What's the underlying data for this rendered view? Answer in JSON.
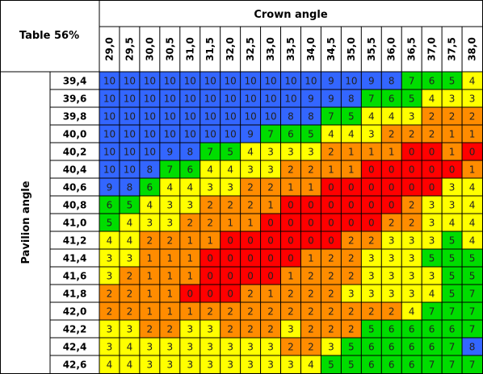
{
  "chart_data": {
    "type": "heatmap",
    "corner_label": "Table 56%",
    "xlabel": "Crown angle",
    "ylabel": "Pavilion angle",
    "x": [
      "29,0",
      "29,5",
      "30,0",
      "30,5",
      "31,0",
      "31,5",
      "32,0",
      "32,5",
      "33,0",
      "33,5",
      "34,0",
      "34,5",
      "35,0",
      "35,5",
      "36,0",
      "36,5",
      "37,0",
      "37,5",
      "38,0"
    ],
    "y": [
      "39,4",
      "39,6",
      "39,8",
      "40,0",
      "40,2",
      "40,4",
      "40,6",
      "40,8",
      "41,0",
      "41,2",
      "41,4",
      "41,6",
      "41,8",
      "42,0",
      "42,2",
      "42,4",
      "42,6"
    ],
    "values": [
      [
        10,
        10,
        10,
        10,
        10,
        10,
        10,
        10,
        10,
        10,
        10,
        9,
        10,
        9,
        8,
        7,
        6,
        5,
        4
      ],
      [
        10,
        10,
        10,
        10,
        10,
        10,
        10,
        10,
        10,
        10,
        9,
        9,
        8,
        7,
        6,
        5,
        4,
        3,
        3
      ],
      [
        10,
        10,
        10,
        10,
        10,
        10,
        10,
        10,
        10,
        8,
        8,
        7,
        5,
        4,
        4,
        3,
        2,
        2,
        2
      ],
      [
        10,
        10,
        10,
        10,
        10,
        10,
        10,
        9,
        7,
        6,
        5,
        4,
        4,
        3,
        2,
        2,
        2,
        1,
        1
      ],
      [
        10,
        10,
        10,
        9,
        8,
        7,
        5,
        4,
        3,
        3,
        3,
        2,
        1,
        1,
        1,
        0,
        0,
        1,
        0
      ],
      [
        10,
        10,
        8,
        7,
        6,
        4,
        4,
        3,
        3,
        2,
        2,
        1,
        1,
        0,
        0,
        0,
        0,
        0,
        1
      ],
      [
        9,
        8,
        6,
        4,
        4,
        3,
        3,
        2,
        2,
        1,
        1,
        0,
        0,
        0,
        0,
        0,
        0,
        3,
        4
      ],
      [
        6,
        5,
        4,
        3,
        3,
        2,
        2,
        2,
        1,
        0,
        0,
        0,
        0,
        0,
        0,
        2,
        3,
        3,
        4
      ],
      [
        5,
        4,
        3,
        3,
        2,
        2,
        1,
        1,
        0,
        0,
        0,
        0,
        0,
        0,
        2,
        2,
        3,
        4,
        4
      ],
      [
        4,
        4,
        2,
        2,
        1,
        1,
        0,
        0,
        0,
        0,
        0,
        0,
        2,
        2,
        3,
        3,
        3,
        5,
        4
      ],
      [
        3,
        3,
        1,
        1,
        1,
        0,
        0,
        0,
        0,
        0,
        1,
        2,
        2,
        3,
        3,
        3,
        5,
        5,
        5
      ],
      [
        3,
        2,
        1,
        1,
        1,
        0,
        0,
        0,
        0,
        1,
        2,
        2,
        2,
        3,
        3,
        3,
        3,
        5,
        5
      ],
      [
        2,
        2,
        1,
        1,
        0,
        0,
        0,
        2,
        1,
        2,
        2,
        2,
        3,
        3,
        3,
        3,
        4,
        5,
        7
      ],
      [
        2,
        2,
        1,
        1,
        1,
        2,
        2,
        2,
        2,
        2,
        2,
        2,
        2,
        2,
        2,
        4,
        7,
        7,
        7
      ],
      [
        3,
        3,
        2,
        2,
        3,
        3,
        2,
        2,
        2,
        3,
        2,
        2,
        2,
        5,
        6,
        6,
        6,
        6,
        7
      ],
      [
        3,
        4,
        3,
        3,
        3,
        3,
        3,
        3,
        3,
        2,
        2,
        3,
        5,
        6,
        6,
        6,
        6,
        7,
        8
      ],
      [
        4,
        4,
        3,
        3,
        3,
        3,
        3,
        3,
        3,
        3,
        4,
        5,
        5,
        6,
        6,
        6,
        7,
        7,
        7
      ]
    ],
    "color_scale": {
      "0": "#ff0000",
      "1": "#ff8c00",
      "2": "#ff8c00",
      "3": "#ffff00",
      "4": "#ffff00",
      "5": "#00dd00",
      "6": "#00dd00",
      "7": "#00dd00",
      "8": "#3366ff",
      "9": "#3366ff",
      "10": "#3366ff"
    },
    "colors": {
      "text": "#000000",
      "cell_text": "#222222",
      "grid": "#000000",
      "header_bg": "#ffffff"
    }
  }
}
